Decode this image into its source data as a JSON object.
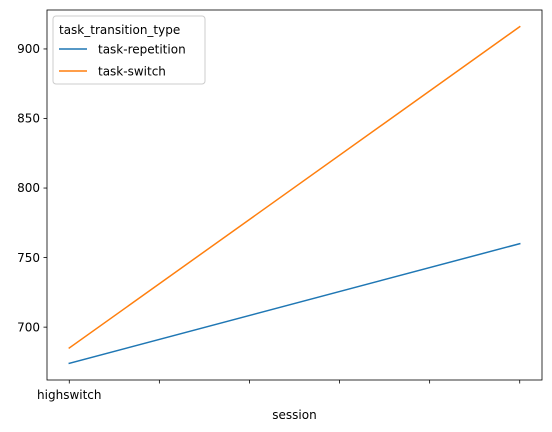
{
  "chart_data": {
    "type": "line",
    "title": "",
    "xlabel": "session",
    "ylabel": "",
    "x": [
      0,
      1
    ],
    "x_tick_labels": [
      "highswitch",
      "",
      "",
      "",
      "",
      ""
    ],
    "x_tick_positions": [
      0,
      0.2,
      0.4,
      0.6,
      0.8,
      1.0
    ],
    "ylim": [
      662,
      928
    ],
    "y_ticks": [
      700,
      750,
      800,
      850,
      900
    ],
    "grid": false,
    "legend": {
      "title": "task_transition_type",
      "placement": "top-left"
    },
    "series": [
      {
        "name": "task-repetition",
        "color": "#1f77b4",
        "values": [
          674,
          760
        ]
      },
      {
        "name": "task-switch",
        "color": "#ff7f0e",
        "values": [
          685,
          916
        ]
      }
    ]
  }
}
